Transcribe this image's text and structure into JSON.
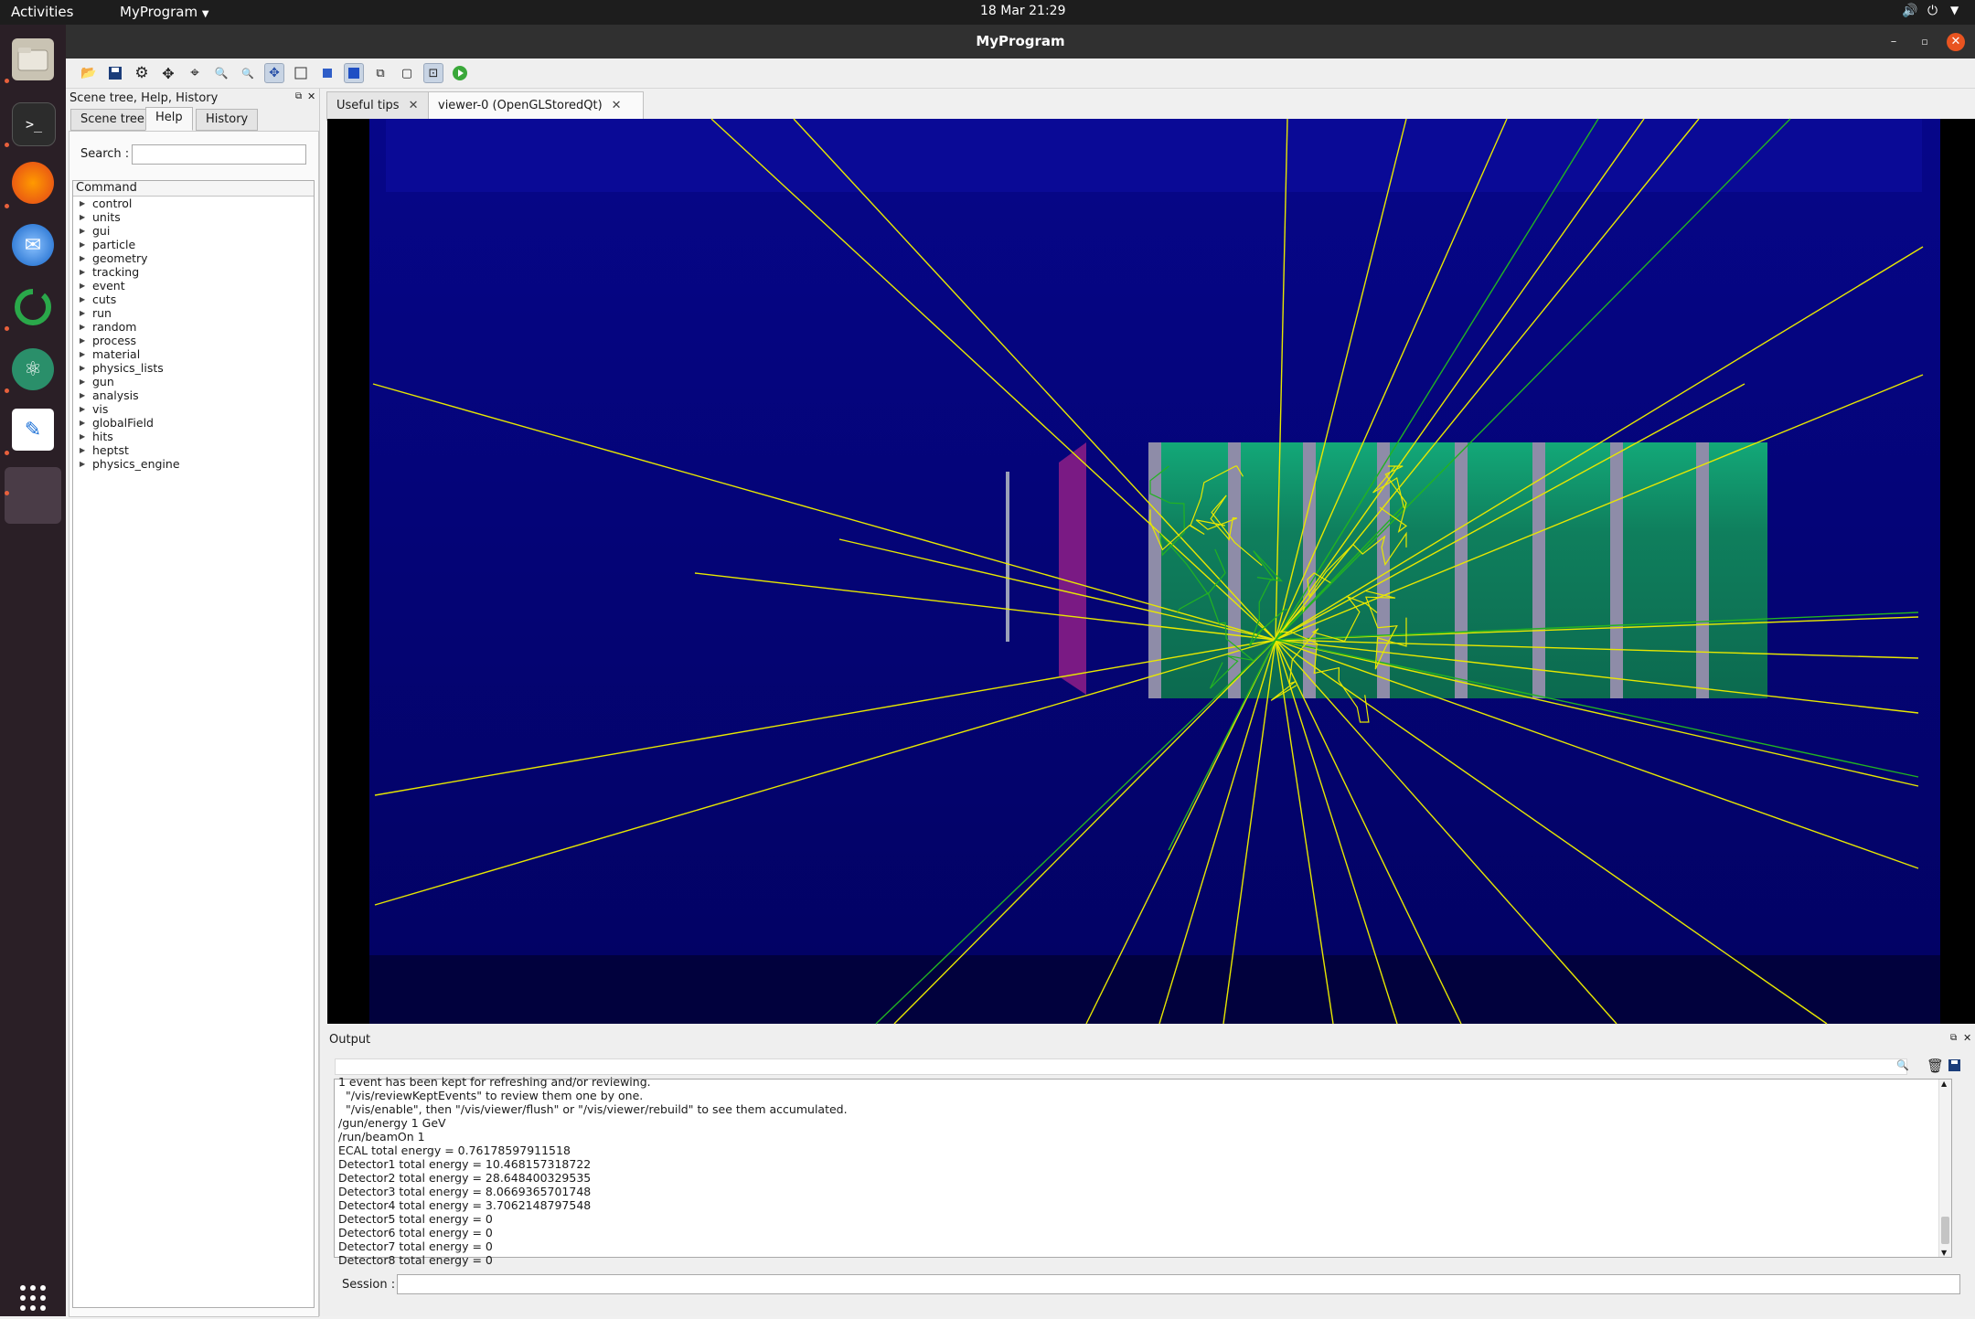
{
  "topbar": {
    "activities": "Activities",
    "app_menu": "MyProgram",
    "clock": "18 Mar  21:29"
  },
  "window": {
    "title": "MyProgram"
  },
  "left_panel": {
    "title": "Scene tree, Help, History",
    "tabs": [
      "Scene tree",
      "Help",
      "History"
    ],
    "search_label": "Search :",
    "search_value": "",
    "tree_header": "Command",
    "commands": [
      "control",
      "units",
      "gui",
      "particle",
      "geometry",
      "tracking",
      "event",
      "cuts",
      "run",
      "random",
      "process",
      "material",
      "physics_lists",
      "gun",
      "analysis",
      "vis",
      "globalField",
      "hits",
      "heptst",
      "physics_engine"
    ]
  },
  "viewer_tabs": [
    {
      "label": "Useful tips"
    },
    {
      "label": "viewer-0 (OpenGLStoredQt)"
    }
  ],
  "output": {
    "title": "Output",
    "search_value": "",
    "lines": [
      "1 event has been kept for refreshing and/or reviewing.",
      "  \"/vis/reviewKeptEvents\" to review them one by one.",
      "  \"/vis/enable\", then \"/vis/viewer/flush\" or \"/vis/viewer/rebuild\" to see them accumulated.",
      "/gun/energy 1 GeV",
      "/run/beamOn 1",
      "ECAL total energy = 0.76178597911518",
      "Detector1 total energy = 10.468157318722",
      "Detector2 total energy = 28.648400329535",
      "Detector3 total energy = 8.0669365701748",
      "Detector4 total energy = 3.7062148797548",
      "Detector5 total energy = 0",
      "Detector6 total energy = 0",
      "Detector7 total energy = 0",
      "Detector8 total energy = 0"
    ],
    "session_label": "Session :",
    "session_value": ""
  },
  "colors": {
    "scene_bg": "#03036b",
    "detector": "#0d8a62",
    "track_yellow": "#e8e800",
    "track_green": "#22b322"
  }
}
